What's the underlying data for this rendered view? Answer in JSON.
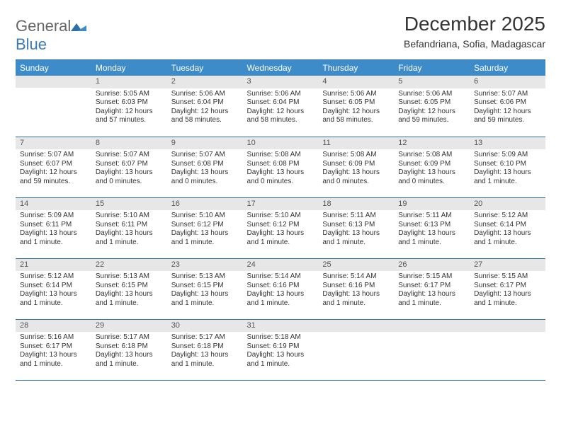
{
  "logo": {
    "general": "General",
    "blue": "Blue"
  },
  "title": "December 2025",
  "subtitle": "Befandriana, Sofia, Madagascar",
  "colors": {
    "header_bg": "#3d8bc8",
    "header_text": "#ffffff",
    "rule": "#2f6fa8",
    "daynum_bg": "#e7e7e7",
    "text": "#333333",
    "logo_blue": "#3a7ab8"
  },
  "weekdays": [
    "Sunday",
    "Monday",
    "Tuesday",
    "Wednesday",
    "Thursday",
    "Friday",
    "Saturday"
  ],
  "weeks": [
    [
      null,
      {
        "n": "1",
        "sunrise": "Sunrise: 5:05 AM",
        "sunset": "Sunset: 6:03 PM",
        "daylight": "Daylight: 12 hours and 57 minutes."
      },
      {
        "n": "2",
        "sunrise": "Sunrise: 5:06 AM",
        "sunset": "Sunset: 6:04 PM",
        "daylight": "Daylight: 12 hours and 58 minutes."
      },
      {
        "n": "3",
        "sunrise": "Sunrise: 5:06 AM",
        "sunset": "Sunset: 6:04 PM",
        "daylight": "Daylight: 12 hours and 58 minutes."
      },
      {
        "n": "4",
        "sunrise": "Sunrise: 5:06 AM",
        "sunset": "Sunset: 6:05 PM",
        "daylight": "Daylight: 12 hours and 58 minutes."
      },
      {
        "n": "5",
        "sunrise": "Sunrise: 5:06 AM",
        "sunset": "Sunset: 6:05 PM",
        "daylight": "Daylight: 12 hours and 59 minutes."
      },
      {
        "n": "6",
        "sunrise": "Sunrise: 5:07 AM",
        "sunset": "Sunset: 6:06 PM",
        "daylight": "Daylight: 12 hours and 59 minutes."
      }
    ],
    [
      {
        "n": "7",
        "sunrise": "Sunrise: 5:07 AM",
        "sunset": "Sunset: 6:07 PM",
        "daylight": "Daylight: 12 hours and 59 minutes."
      },
      {
        "n": "8",
        "sunrise": "Sunrise: 5:07 AM",
        "sunset": "Sunset: 6:07 PM",
        "daylight": "Daylight: 13 hours and 0 minutes."
      },
      {
        "n": "9",
        "sunrise": "Sunrise: 5:07 AM",
        "sunset": "Sunset: 6:08 PM",
        "daylight": "Daylight: 13 hours and 0 minutes."
      },
      {
        "n": "10",
        "sunrise": "Sunrise: 5:08 AM",
        "sunset": "Sunset: 6:08 PM",
        "daylight": "Daylight: 13 hours and 0 minutes."
      },
      {
        "n": "11",
        "sunrise": "Sunrise: 5:08 AM",
        "sunset": "Sunset: 6:09 PM",
        "daylight": "Daylight: 13 hours and 0 minutes."
      },
      {
        "n": "12",
        "sunrise": "Sunrise: 5:08 AM",
        "sunset": "Sunset: 6:09 PM",
        "daylight": "Daylight: 13 hours and 0 minutes."
      },
      {
        "n": "13",
        "sunrise": "Sunrise: 5:09 AM",
        "sunset": "Sunset: 6:10 PM",
        "daylight": "Daylight: 13 hours and 1 minute."
      }
    ],
    [
      {
        "n": "14",
        "sunrise": "Sunrise: 5:09 AM",
        "sunset": "Sunset: 6:11 PM",
        "daylight": "Daylight: 13 hours and 1 minute."
      },
      {
        "n": "15",
        "sunrise": "Sunrise: 5:10 AM",
        "sunset": "Sunset: 6:11 PM",
        "daylight": "Daylight: 13 hours and 1 minute."
      },
      {
        "n": "16",
        "sunrise": "Sunrise: 5:10 AM",
        "sunset": "Sunset: 6:12 PM",
        "daylight": "Daylight: 13 hours and 1 minute."
      },
      {
        "n": "17",
        "sunrise": "Sunrise: 5:10 AM",
        "sunset": "Sunset: 6:12 PM",
        "daylight": "Daylight: 13 hours and 1 minute."
      },
      {
        "n": "18",
        "sunrise": "Sunrise: 5:11 AM",
        "sunset": "Sunset: 6:13 PM",
        "daylight": "Daylight: 13 hours and 1 minute."
      },
      {
        "n": "19",
        "sunrise": "Sunrise: 5:11 AM",
        "sunset": "Sunset: 6:13 PM",
        "daylight": "Daylight: 13 hours and 1 minute."
      },
      {
        "n": "20",
        "sunrise": "Sunrise: 5:12 AM",
        "sunset": "Sunset: 6:14 PM",
        "daylight": "Daylight: 13 hours and 1 minute."
      }
    ],
    [
      {
        "n": "21",
        "sunrise": "Sunrise: 5:12 AM",
        "sunset": "Sunset: 6:14 PM",
        "daylight": "Daylight: 13 hours and 1 minute."
      },
      {
        "n": "22",
        "sunrise": "Sunrise: 5:13 AM",
        "sunset": "Sunset: 6:15 PM",
        "daylight": "Daylight: 13 hours and 1 minute."
      },
      {
        "n": "23",
        "sunrise": "Sunrise: 5:13 AM",
        "sunset": "Sunset: 6:15 PM",
        "daylight": "Daylight: 13 hours and 1 minute."
      },
      {
        "n": "24",
        "sunrise": "Sunrise: 5:14 AM",
        "sunset": "Sunset: 6:16 PM",
        "daylight": "Daylight: 13 hours and 1 minute."
      },
      {
        "n": "25",
        "sunrise": "Sunrise: 5:14 AM",
        "sunset": "Sunset: 6:16 PM",
        "daylight": "Daylight: 13 hours and 1 minute."
      },
      {
        "n": "26",
        "sunrise": "Sunrise: 5:15 AM",
        "sunset": "Sunset: 6:17 PM",
        "daylight": "Daylight: 13 hours and 1 minute."
      },
      {
        "n": "27",
        "sunrise": "Sunrise: 5:15 AM",
        "sunset": "Sunset: 6:17 PM",
        "daylight": "Daylight: 13 hours and 1 minute."
      }
    ],
    [
      {
        "n": "28",
        "sunrise": "Sunrise: 5:16 AM",
        "sunset": "Sunset: 6:17 PM",
        "daylight": "Daylight: 13 hours and 1 minute."
      },
      {
        "n": "29",
        "sunrise": "Sunrise: 5:17 AM",
        "sunset": "Sunset: 6:18 PM",
        "daylight": "Daylight: 13 hours and 1 minute."
      },
      {
        "n": "30",
        "sunrise": "Sunrise: 5:17 AM",
        "sunset": "Sunset: 6:18 PM",
        "daylight": "Daylight: 13 hours and 1 minute."
      },
      {
        "n": "31",
        "sunrise": "Sunrise: 5:18 AM",
        "sunset": "Sunset: 6:19 PM",
        "daylight": "Daylight: 13 hours and 1 minute."
      },
      null,
      null,
      null
    ]
  ]
}
